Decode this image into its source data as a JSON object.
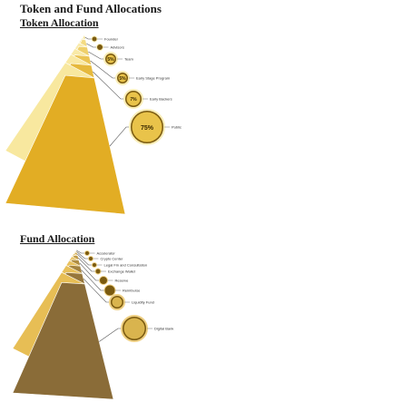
{
  "page_title": "Token and Fund Allocations",
  "sections": {
    "token": {
      "title": "Token Allocation"
    },
    "fund": {
      "title": "Fund Allocation"
    }
  },
  "colors": {
    "token_light": "#f8e79a",
    "token_dark": "#e2ad24",
    "fund_light": "#e6bb4c",
    "fund_dark": "#8a6c38",
    "bubble": "#7a5a10"
  },
  "chart_data": [
    {
      "type": "bar",
      "subtype": "stacked-pyramid",
      "title": "Token Allocation",
      "categories": [
        "Founder",
        "Advisors",
        "Team",
        "Early Stage Program",
        "Early Backers",
        "Public"
      ],
      "values": [
        3,
        4,
        5,
        5,
        7,
        75
      ],
      "unit": "%",
      "value_labels": [
        "",
        "",
        "5%",
        "5%",
        "7%",
        "75%"
      ]
    },
    {
      "type": "bar",
      "subtype": "stacked-pyramid",
      "title": "Fund Allocation",
      "categories": [
        "Accelerator",
        "Crypto Center",
        "Legal Fin and Consultation",
        "Exchange Wallet",
        "Reserve",
        "Reimburse",
        "Liquidity Fund",
        "Digital Bank"
      ],
      "values": [
        1,
        1,
        2,
        3,
        4,
        5,
        7,
        77
      ],
      "unit": "%",
      "value_labels": [
        "",
        "",
        "",
        "",
        "",
        "",
        "",
        ""
      ]
    }
  ]
}
